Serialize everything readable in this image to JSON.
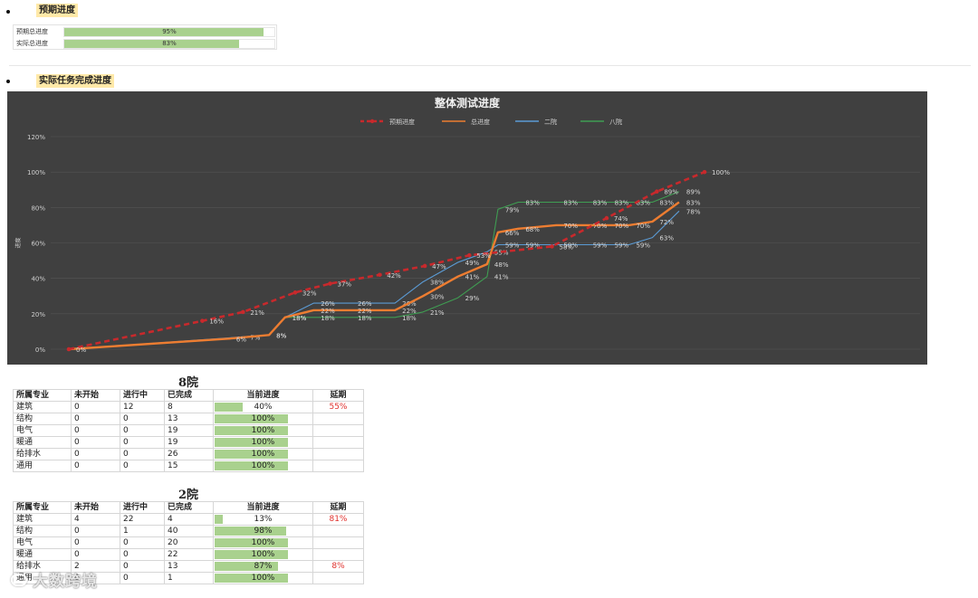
{
  "section1": {
    "heading": "预期进度",
    "rows": [
      {
        "label": "预期总进度",
        "value": 95,
        "text": "95%"
      },
      {
        "label": "实际总进度",
        "value": 83,
        "text": "83%"
      }
    ]
  },
  "section2": {
    "heading": "实际任务完成进度"
  },
  "chart_data": {
    "type": "line",
    "title": "整体测试进度",
    "ylabel": "进度",
    "ylim": [
      0,
      120
    ],
    "yticks": [
      "0%",
      "20%",
      "40%",
      "60%",
      "80%",
      "100%",
      "120%"
    ],
    "grid": true,
    "legend_position": "top",
    "series": [
      {
        "name": "预期进度",
        "color": "#c8292c",
        "dashed": true,
        "x": [
          0.0,
          0.21,
          0.274,
          0.356,
          0.411,
          0.489,
          0.56,
          0.63,
          0.76,
          0.846,
          0.925,
          1.0
        ],
        "values": [
          0,
          16,
          21,
          32,
          37,
          42,
          47,
          53,
          58,
          74,
          89,
          100
        ],
        "labels": [
          "0%",
          "16%",
          "21%",
          "32%",
          "37%",
          "42%",
          "47%",
          "53%",
          "58%",
          "74%",
          "89%",
          "100%"
        ]
      },
      {
        "name": "总进度",
        "color": "#ed7d31",
        "dashed": false,
        "x": [
          0.0,
          0.252,
          0.315,
          0.34,
          0.385,
          0.443,
          0.513,
          0.557,
          0.612,
          0.658,
          0.675,
          0.707,
          0.767,
          0.813,
          0.847,
          0.881,
          0.918,
          0.96
        ],
        "values": [
          0,
          6,
          8,
          18,
          22,
          22,
          22,
          30,
          41,
          48,
          66,
          68,
          70,
          70,
          70,
          70,
          72,
          83
        ],
        "labels": [
          "",
          "6%",
          "8%",
          "18%",
          "22%",
          "22%",
          "22%",
          "30%",
          "41%",
          "48%",
          "66%",
          "68%",
          "70%",
          "70%",
          "70%",
          "70%",
          "72%",
          "83%"
        ]
      },
      {
        "name": "二院",
        "color": "#5b9bd5",
        "dashed": false,
        "x": [
          0.0,
          0.274,
          0.315,
          0.34,
          0.385,
          0.443,
          0.513,
          0.557,
          0.612,
          0.658,
          0.675,
          0.707,
          0.767,
          0.813,
          0.847,
          0.881,
          0.918,
          0.96
        ],
        "values": [
          0,
          7,
          8,
          18,
          26,
          26,
          26,
          38,
          49,
          55,
          59,
          59,
          59,
          59,
          59,
          59,
          63,
          78
        ],
        "labels": [
          "",
          "7%",
          "",
          "",
          "26%",
          "26%",
          "26%",
          "38%",
          "49%",
          "55%",
          "59%",
          "59%",
          "59%",
          "59%",
          "59%",
          "59%",
          "63%",
          "78%"
        ]
      },
      {
        "name": "八院",
        "color": "#3f9d52",
        "dashed": false,
        "x": [
          0.0,
          0.252,
          0.315,
          0.34,
          0.385,
          0.443,
          0.513,
          0.557,
          0.612,
          0.658,
          0.675,
          0.707,
          0.767,
          0.813,
          0.847,
          0.881,
          0.918,
          0.96
        ],
        "values": [
          0,
          6,
          8,
          18,
          18,
          18,
          18,
          21,
          29,
          41,
          79,
          83,
          83,
          83,
          83,
          83,
          83,
          89
        ],
        "labels": [
          "",
          "",
          "8%",
          "18%",
          "18%",
          "18%",
          "18%",
          "21%",
          "29%",
          "41%",
          "79%",
          "83%",
          "83%",
          "83%",
          "83%",
          "83%",
          "83%",
          "89%"
        ]
      }
    ]
  },
  "table8": {
    "title": "8院",
    "headers": [
      "所属专业",
      "未开始",
      "进行中",
      "已完成",
      "当前进度",
      "延期"
    ],
    "rows": [
      {
        "name": "建筑",
        "not_started": "0",
        "in_progress": "12",
        "done": "8",
        "progress": 40,
        "progress_text": "40%",
        "delay": "55%"
      },
      {
        "name": "结构",
        "not_started": "0",
        "in_progress": "0",
        "done": "13",
        "progress": 100,
        "progress_text": "100%",
        "delay": ""
      },
      {
        "name": "电气",
        "not_started": "0",
        "in_progress": "0",
        "done": "19",
        "progress": 100,
        "progress_text": "100%",
        "delay": ""
      },
      {
        "name": "暖通",
        "not_started": "0",
        "in_progress": "0",
        "done": "19",
        "progress": 100,
        "progress_text": "100%",
        "delay": ""
      },
      {
        "name": "给排水",
        "not_started": "0",
        "in_progress": "0",
        "done": "26",
        "progress": 100,
        "progress_text": "100%",
        "delay": ""
      },
      {
        "name": "通用",
        "not_started": "0",
        "in_progress": "0",
        "done": "15",
        "progress": 100,
        "progress_text": "100%",
        "delay": ""
      }
    ]
  },
  "table2": {
    "title": "2院",
    "headers": [
      "所属专业",
      "未开始",
      "进行中",
      "已完成",
      "当前进度",
      "延期"
    ],
    "rows": [
      {
        "name": "建筑",
        "not_started": "4",
        "in_progress": "22",
        "done": "4",
        "progress": 13,
        "progress_text": "13%",
        "delay": "81%"
      },
      {
        "name": "结构",
        "not_started": "0",
        "in_progress": "1",
        "done": "40",
        "progress": 98,
        "progress_text": "98%",
        "delay": ""
      },
      {
        "name": "电气",
        "not_started": "0",
        "in_progress": "0",
        "done": "20",
        "progress": 100,
        "progress_text": "100%",
        "delay": ""
      },
      {
        "name": "暖通",
        "not_started": "0",
        "in_progress": "0",
        "done": "22",
        "progress": 100,
        "progress_text": "100%",
        "delay": ""
      },
      {
        "name": "给排水",
        "not_started": "2",
        "in_progress": "0",
        "done": "13",
        "progress": 87,
        "progress_text": "87%",
        "delay": "8%"
      },
      {
        "name": "通用",
        "not_started": "0",
        "in_progress": "0",
        "done": "1",
        "progress": 100,
        "progress_text": "100%",
        "delay": ""
      }
    ]
  },
  "watermark": {
    "text": "大数跨境"
  }
}
